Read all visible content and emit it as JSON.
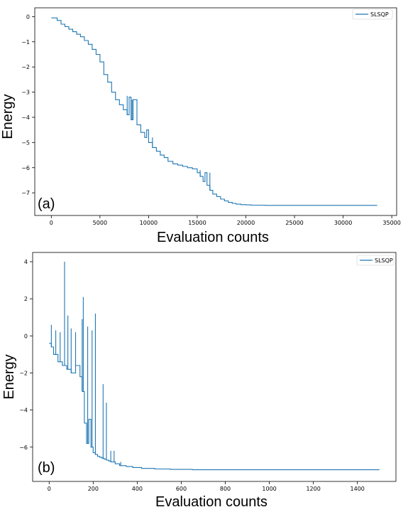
{
  "chart_data": [
    {
      "type": "line",
      "panel_label": "(a)",
      "xlabel": "Evaluation counts",
      "ylabel": "Energy",
      "xlim": [
        -1700,
        35500
      ],
      "ylim": [
        -7.9,
        0.35
      ],
      "xticks": [
        0,
        5000,
        10000,
        15000,
        20000,
        25000,
        30000,
        35000
      ],
      "yticks": [
        0,
        -1,
        -2,
        -3,
        -4,
        -5,
        -6,
        -7
      ],
      "legend_position": "top-right",
      "grid": false,
      "series": [
        {
          "name": "SLSQP",
          "color": "#1f77b4",
          "x": [
            0,
            600,
            1000,
            1400,
            1800,
            2200,
            2600,
            3000,
            3400,
            3800,
            4200,
            4600,
            5000,
            5400,
            5800,
            6200,
            6600,
            7000,
            7400,
            7800,
            8000,
            8200,
            8400,
            8800,
            9200,
            9600,
            9800,
            10000,
            10400,
            10800,
            11200,
            11600,
            12000,
            12500,
            13000,
            13500,
            14000,
            14500,
            15000,
            15300,
            15600,
            15800,
            16000,
            16300,
            16600,
            17000,
            17400,
            17800,
            18200,
            18600,
            19000,
            19500,
            20000,
            20500,
            22000,
            26000,
            30000,
            33500
          ],
          "y": [
            -0.05,
            -0.15,
            -0.3,
            -0.4,
            -0.5,
            -0.6,
            -0.7,
            -0.8,
            -0.95,
            -1.1,
            -1.3,
            -1.5,
            -1.8,
            -2.3,
            -2.6,
            -3.0,
            -3.3,
            -3.5,
            -3.7,
            -3.9,
            -3.2,
            -4.1,
            -3.3,
            -4.3,
            -4.6,
            -4.8,
            -4.5,
            -5.0,
            -5.2,
            -5.35,
            -5.5,
            -5.6,
            -5.75,
            -5.85,
            -5.9,
            -5.95,
            -6.0,
            -6.05,
            -6.2,
            -6.35,
            -6.55,
            -6.2,
            -6.7,
            -6.9,
            -7.05,
            -7.15,
            -7.25,
            -7.32,
            -7.38,
            -7.42,
            -7.45,
            -7.47,
            -7.48,
            -7.49,
            -7.5,
            -7.5,
            -7.5,
            -7.5
          ],
          "spikes": [
            {
              "x": 7800,
              "y": -3.15
            },
            {
              "x": 8300,
              "y": -3.3
            },
            {
              "x": 9800,
              "y": -4.5
            },
            {
              "x": 10400,
              "y": -4.8
            },
            {
              "x": 15300,
              "y": -6.1
            },
            {
              "x": 16300,
              "y": -6.2
            }
          ]
        }
      ]
    },
    {
      "type": "line",
      "panel_label": "(b)",
      "xlabel": "Evaluation counts",
      "ylabel": "Energy",
      "xlim": [
        -75,
        1575
      ],
      "ylim": [
        -7.85,
        4.5
      ],
      "xticks": [
        0,
        200,
        400,
        600,
        800,
        1000,
        1200,
        1400
      ],
      "yticks": [
        4,
        2,
        0,
        -2,
        -4,
        -6
      ],
      "legend_position": "top-right",
      "grid": false,
      "series": [
        {
          "name": "SLSQP",
          "color": "#1f77b4",
          "x": [
            0,
            10,
            20,
            40,
            60,
            80,
            100,
            120,
            140,
            150,
            160,
            170,
            180,
            190,
            200,
            210,
            220,
            230,
            240,
            250,
            260,
            270,
            280,
            300,
            320,
            350,
            380,
            420,
            480,
            550,
            650,
            800,
            1000,
            1200,
            1500
          ],
          "y": [
            -0.4,
            -0.6,
            -1.0,
            -1.4,
            -1.6,
            -1.8,
            -2.0,
            -1.6,
            -2.2,
            -3.0,
            -4.7,
            -5.8,
            -4.5,
            -6.0,
            -6.3,
            -6.4,
            -6.5,
            -6.55,
            -6.6,
            -6.65,
            -6.7,
            -6.75,
            -6.8,
            -6.9,
            -7.0,
            -7.05,
            -7.1,
            -7.15,
            -7.18,
            -7.2,
            -7.22,
            -7.22,
            -7.22,
            -7.22,
            -7.22
          ],
          "spikes": [
            {
              "x": 10,
              "y": 0.6
            },
            {
              "x": 30,
              "y": 0.3
            },
            {
              "x": 50,
              "y": 0.2
            },
            {
              "x": 70,
              "y": 4.0
            },
            {
              "x": 85,
              "y": 1.1
            },
            {
              "x": 100,
              "y": 0.4
            },
            {
              "x": 120,
              "y": 0.2
            },
            {
              "x": 150,
              "y": 0.9
            },
            {
              "x": 155,
              "y": 2.1
            },
            {
              "x": 175,
              "y": 0.5
            },
            {
              "x": 195,
              "y": 0.3
            },
            {
              "x": 210,
              "y": 1.2
            },
            {
              "x": 245,
              "y": -2.6
            },
            {
              "x": 260,
              "y": -3.6
            },
            {
              "x": 280,
              "y": -6.2
            },
            {
              "x": 295,
              "y": -6.2
            },
            {
              "x": 325,
              "y": -6.8
            }
          ]
        }
      ]
    }
  ]
}
